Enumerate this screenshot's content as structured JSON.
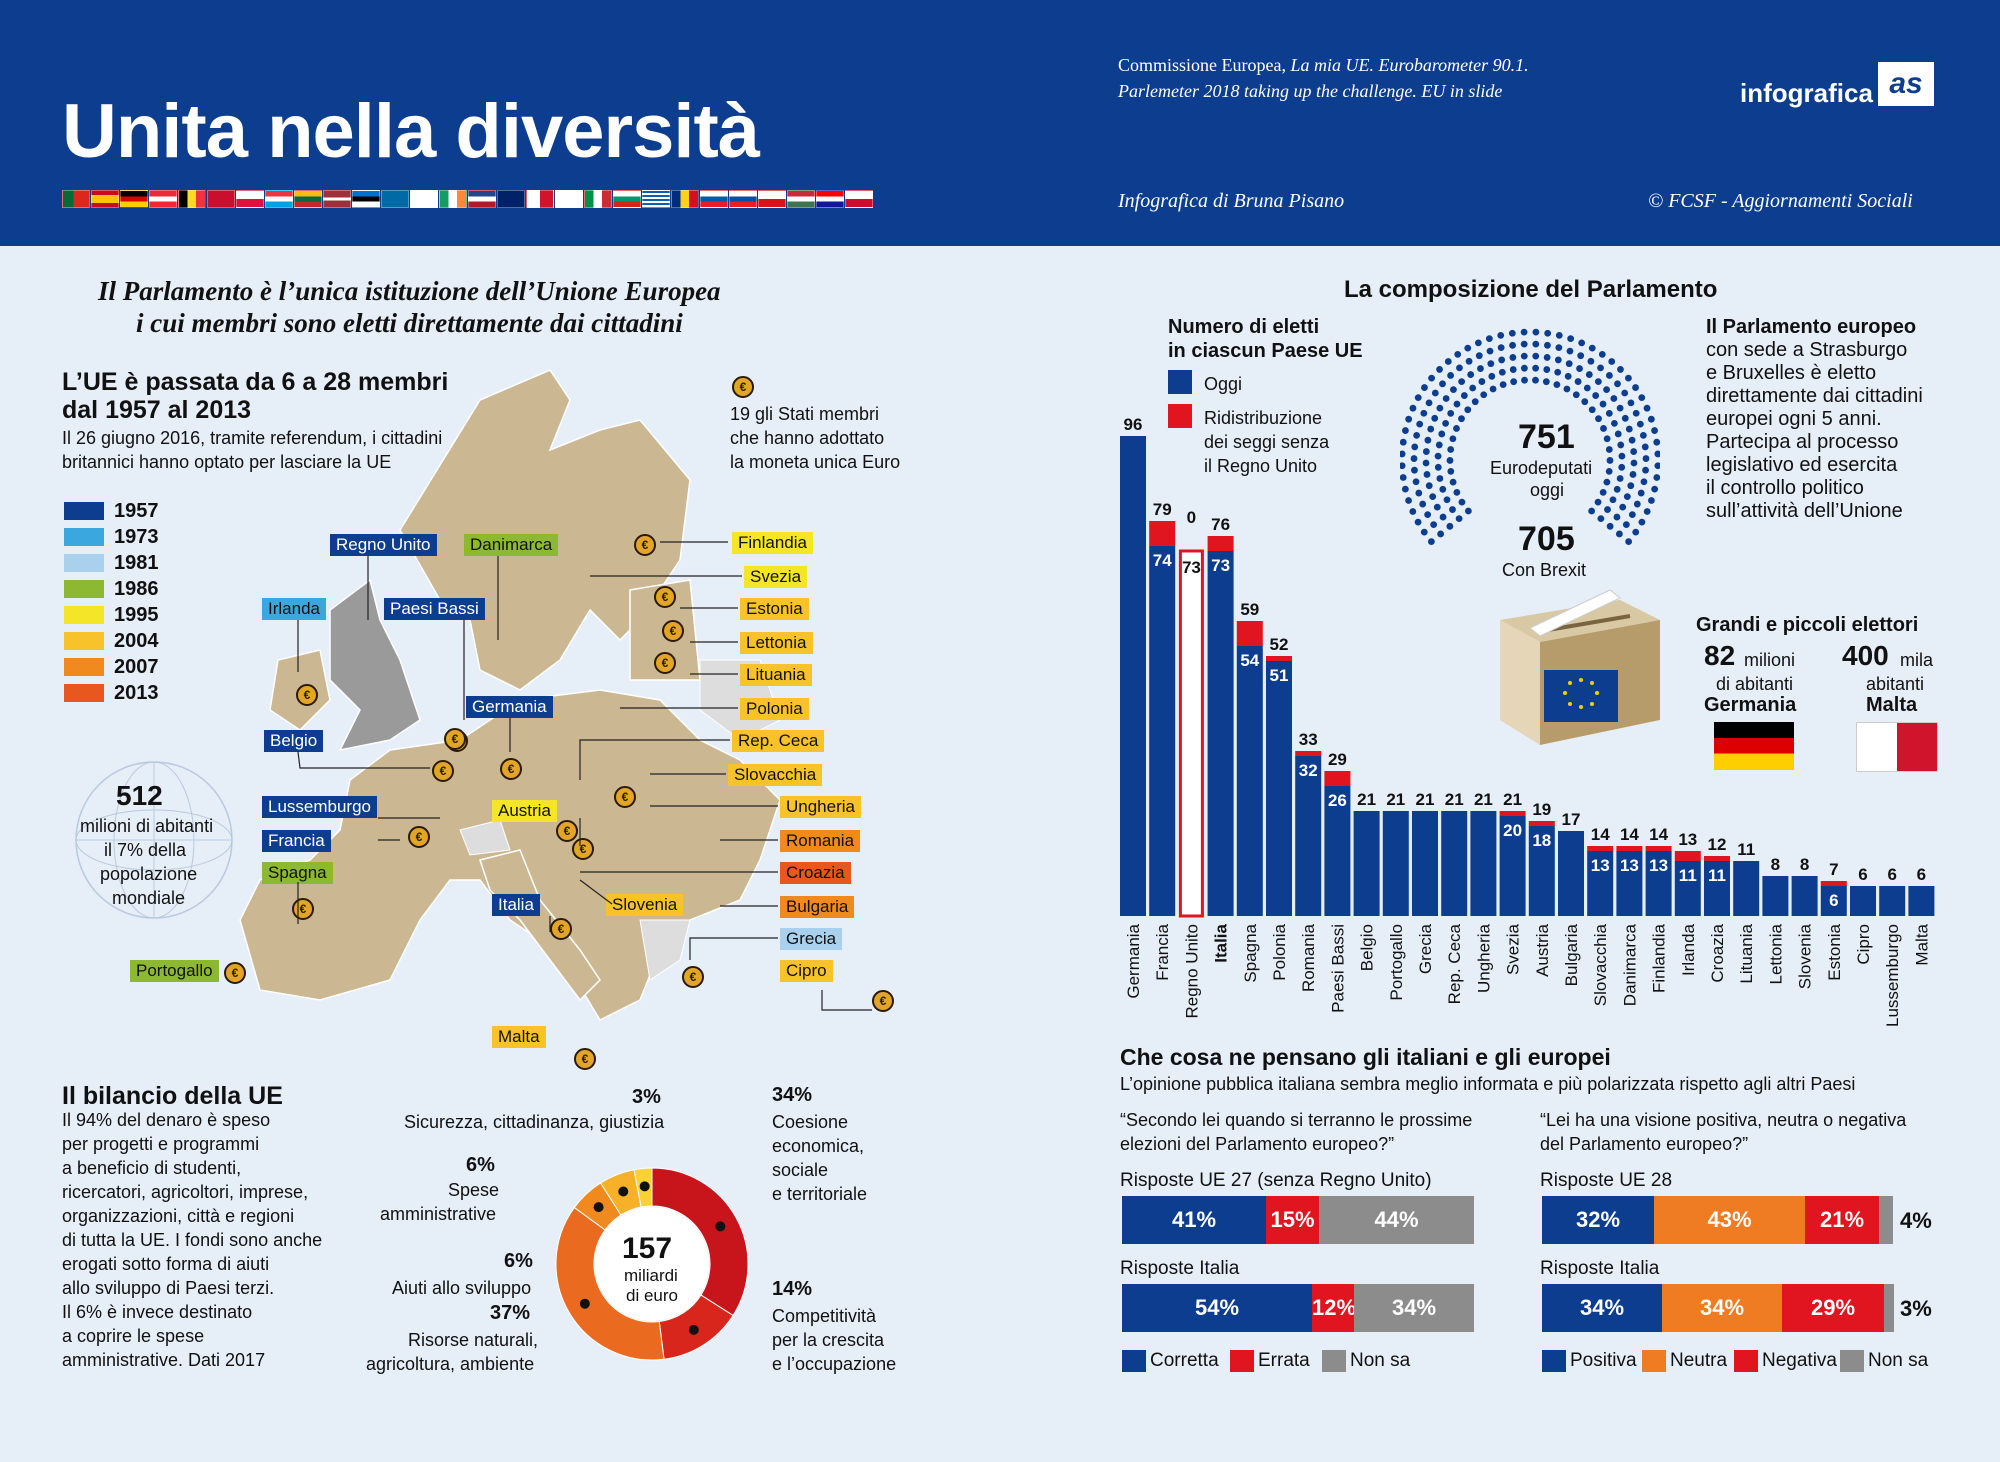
{
  "header": {
    "title": "Unita nella diversità",
    "source_1": "Commissione Europea, ",
    "source_1_it": "La mia UE. Eurobarometer 90.1.",
    "source_2": "Parlemeter 2018 taking up the challenge. EU in slide",
    "author": "Infografica di Bruna Pisano",
    "copyright": "© FCSF - Aggiornamenti Sociali",
    "logo_text": "infografica",
    "logo_mark": "as"
  },
  "left": {
    "headline_1": "Il Parlamento è l’unica istituzione dell’Unione Europea",
    "headline_2": "i cui membri sono eletti direttamente dai cittadini",
    "map_title_1": "L’UE è passata da 6 a 28 membri",
    "map_title_2": "dal 1957 al 2013",
    "map_text_1": "Il 26 giugno 2016, tramite referendum, i cittadini",
    "map_text_2": "britannici hanno optato per lasciare la UE",
    "euro_note_1": "19 gli Stati membri",
    "euro_note_2": "che hanno adottato",
    "euro_note_3": "la moneta unica Euro",
    "legend": [
      {
        "year": "1957",
        "color": "#0d3d8f"
      },
      {
        "year": "1973",
        "color": "#3aa8df"
      },
      {
        "year": "1981",
        "color": "#a9d1ee"
      },
      {
        "year": "1986",
        "color": "#8db832"
      },
      {
        "year": "1995",
        "color": "#f4e529"
      },
      {
        "year": "2004",
        "color": "#f8c22a"
      },
      {
        "year": "2007",
        "color": "#f08a1e"
      },
      {
        "year": "2013",
        "color": "#e8571d"
      }
    ],
    "population_value": "512",
    "population_text_1": "milioni di abitanti",
    "population_text_2": "il 7% della",
    "population_text_3": "popolazione",
    "population_text_4": "mondiale",
    "countries": {
      "regno_unito": "Regno Unito",
      "danimarca": "Danimarca",
      "irlanda": "Irlanda",
      "paesi_bassi": "Paesi Bassi",
      "germania": "Germania",
      "belgio": "Belgio",
      "lussemburgo": "Lussemburgo",
      "francia": "Francia",
      "spagna": "Spagna",
      "portogallo": "Portogallo",
      "italia": "Italia",
      "malta": "Malta",
      "austria": "Austria",
      "slovenia": "Slovenia",
      "finlandia": "Finlandia",
      "svezia": "Svezia",
      "estonia": "Estonia",
      "lettonia": "Lettonia",
      "lituania": "Lituania",
      "polonia": "Polonia",
      "rep_ceca": "Rep. Ceca",
      "slovacchia": "Slovacchia",
      "ungheria": "Ungheria",
      "romania": "Romania",
      "croazia": "Croazia",
      "bulgaria": "Bulgaria",
      "grecia": "Grecia",
      "cipro": "Cipro"
    },
    "budget_title": "Il bilancio della UE",
    "budget_text": [
      "Il 94% del denaro è speso",
      "per progetti e programmi",
      "a beneficio di studenti,",
      "ricercatori, agricoltori, imprese,",
      "organizzazioni, città e regioni",
      "di tutta la UE. I fondi sono anche",
      "erogati sotto forma di aiuti",
      "allo sviluppo di Paesi terzi.",
      "Il 6% è invece destinato",
      "a coprire le spese",
      "amministrative. Dati 2017"
    ],
    "donut_center_value": "157",
    "donut_center_1": "miliardi",
    "donut_center_2": "di euro",
    "budget": {
      "sicurezza_pct": "3%",
      "sicurezza_label": "Sicurezza, cittadinanza, giustizia",
      "spese_pct": "6%",
      "spese_1": "Spese",
      "spese_2": "amministrative",
      "aiuti_pct": "6%",
      "aiuti_label": "Aiuti allo sviluppo",
      "risorse_pct": "37%",
      "risorse_1": "Risorse naturali,",
      "risorse_2": "agricoltura, ambiente",
      "coesione_pct": "34%",
      "coesione_1": "Coesione",
      "coesione_2": "economica,",
      "coesione_3": "sociale",
      "coesione_4": "e territoriale",
      "compet_pct": "14%",
      "compet_1": "Competitività",
      "compet_2": "per la crescita",
      "compet_3": "e l’occupazione"
    }
  },
  "right": {
    "section_title": "La composizione del Parlamento",
    "chart_title_1": "Numero di eletti",
    "chart_title_2": "in ciascun Paese UE",
    "legend_oggi": "Oggi",
    "legend_redis_1": "Ridistribuzione",
    "legend_redis_2": "dei seggi senza",
    "legend_redis_3": "il Regno Unito",
    "hemicycle_value_1": "751",
    "hemicycle_text_1": "Eurodeputati",
    "hemicycle_text_2": "oggi",
    "hemicycle_value_2": "705",
    "hemicycle_text_3": "Con Brexit",
    "parl_text": [
      "Il Parlamento europeo",
      "con sede a Strasburgo",
      "e Bruxelles è eletto",
      "direttamente dai cittadini",
      "europei ogni 5 anni.",
      "Partecipa al processo",
      "legislativo ed esercita",
      "il controllo politico",
      "sull’attività dell’Unione"
    ],
    "electors_title": "Grandi e piccoli elettori",
    "de_value": "82",
    "de_unit": "milioni",
    "de_text": "di abitanti",
    "de_name": "Germania",
    "mt_value": "400",
    "mt_unit": "mila",
    "mt_text": "abitanti",
    "mt_name": "Malta",
    "opinion_title": "Che cosa ne pensano gli italiani e gli europei",
    "opinion_sub": "L’opinione pubblica italiana sembra meglio informata e più polarizzata rispetto agli altri Paesi",
    "q1_1": "“Secondo lei quando si terranno le prossime",
    "q1_2": "elezioni del Parlamento europeo?”",
    "q2_1": "“Lei ha una visione positiva, neutra o negativa",
    "q2_2": "del Parlamento europeo?”",
    "q1_eu_label": "Risposte UE 27 (senza Regno Unito)",
    "q1_it_label": "Risposte Italia",
    "q2_eu_label": "Risposte UE 28",
    "q2_it_label": "Risposte Italia",
    "q1_eu": [
      "41%",
      "15%",
      "44%"
    ],
    "q1_it": [
      "54%",
      "12%",
      "34%"
    ],
    "q2_eu": [
      "32%",
      "43%",
      "21%",
      "4%"
    ],
    "q2_it": [
      "34%",
      "34%",
      "29%",
      "3%"
    ],
    "q1_legend": [
      "Corretta",
      "Errata",
      "Non sa"
    ],
    "q2_legend": [
      "Positiva",
      "Neutra",
      "Negativa",
      "Non sa"
    ],
    "colors": {
      "blue": "#0d3d8f",
      "red": "#e0151f",
      "grey": "#8c8c8c",
      "orange": "#ef7b22"
    }
  },
  "chart_data": [
    {
      "type": "bar",
      "title": "Numero di eletti in ciascun Paese UE",
      "categories": [
        "Germania",
        "Francia",
        "Regno Unito",
        "Italia",
        "Spagna",
        "Polonia",
        "Romania",
        "Paesi Bassi",
        "Belgio",
        "Portogallo",
        "Grecia",
        "Rep. Ceca",
        "Ungheria",
        "Svezia",
        "Austria",
        "Bulgaria",
        "Slovacchia",
        "Danimarca",
        "Finlandia",
        "Irlanda",
        "Croazia",
        "Lituania",
        "Lettonia",
        "Slovenia",
        "Estonia",
        "Cipro",
        "Lussemburgo",
        "Malta"
      ],
      "series": [
        {
          "name": "Oggi",
          "values": [
            96,
            74,
            73,
            73,
            54,
            51,
            32,
            26,
            21,
            21,
            21,
            21,
            21,
            20,
            18,
            17,
            13,
            13,
            13,
            11,
            11,
            11,
            8,
            8,
            6,
            6,
            6,
            6
          ]
        },
        {
          "name": "Ridistribuzione dei seggi senza il Regno Unito",
          "values": [
            96,
            79,
            0,
            76,
            59,
            52,
            33,
            29,
            21,
            21,
            21,
            21,
            21,
            21,
            19,
            17,
            14,
            14,
            14,
            13,
            12,
            11,
            8,
            8,
            7,
            6,
            6,
            6
          ]
        }
      ],
      "ylim": [
        0,
        100
      ]
    },
    {
      "type": "pie",
      "title": "Il bilancio della UE",
      "labels": [
        "Coesione economica, sociale e territoriale",
        "Competitività per la crescita e l’occupazione",
        "Risorse naturali, agricoltura, ambiente",
        "Aiuti allo sviluppo",
        "Spese amministrative",
        "Sicurezza, cittadinanza, giustizia"
      ],
      "values": [
        34,
        14,
        37,
        6,
        6,
        3
      ]
    }
  ]
}
